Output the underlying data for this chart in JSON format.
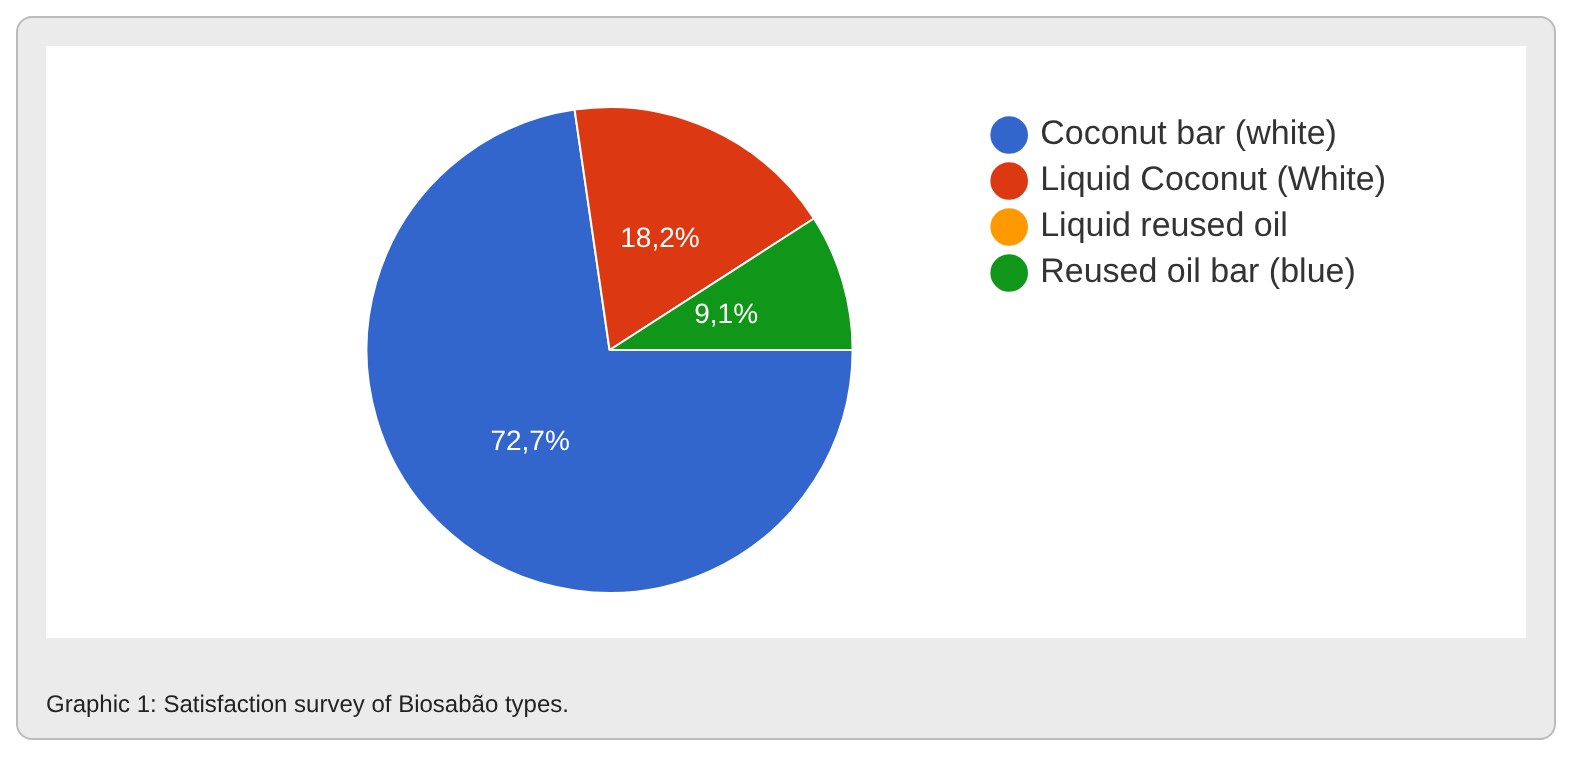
{
  "chart_data": {
    "type": "pie",
    "categories": [
      "Coconut bar (white)",
      "Liquid Coconut (White)",
      "Liquid reused oil",
      "Reused oil bar (blue)"
    ],
    "values": [
      72.7,
      18.2,
      0,
      9.1
    ],
    "colors": [
      "#3366cc",
      "#dc3912",
      "#ff9900",
      "#109618"
    ],
    "value_labels": [
      "72,7%",
      "18,2%",
      null,
      "9,1%"
    ],
    "legend": "top right",
    "annotations": [
      "Graphic 1: Satisfaction survey of Biosabão types."
    ]
  }
}
